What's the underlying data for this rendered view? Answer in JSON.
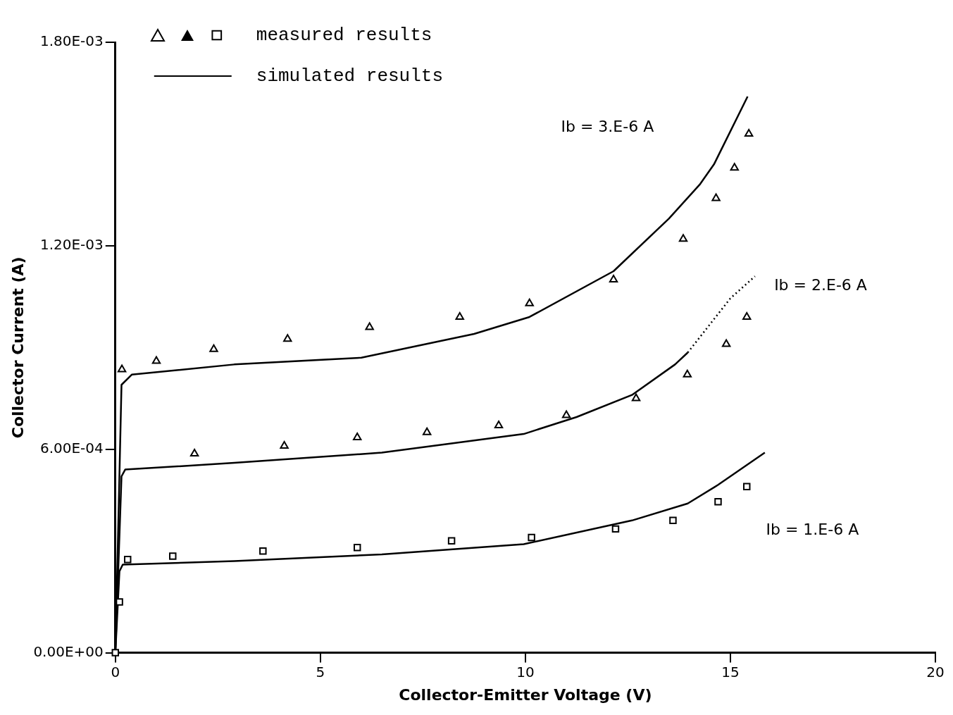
{
  "chart_data": {
    "type": "scatter",
    "xlabel": "Collector-Emitter Voltage (V)",
    "ylabel": "Collector Current (A)",
    "xlim": [
      0,
      20
    ],
    "xticks": [
      0,
      5,
      10,
      15,
      20
    ],
    "ylim": [
      0,
      0.0018
    ],
    "yticks": [
      {
        "value": 0,
        "label": "0.00E+00"
      },
      {
        "value": 0.0006,
        "label": "6.00E-04"
      },
      {
        "value": 0.0012,
        "label": "1.20E-03"
      },
      {
        "value": 0.0018,
        "label": "1.80E-03"
      }
    ],
    "grid": false,
    "legend": "top left",
    "series": [
      {
        "type": "scatter",
        "marker": "triangle",
        "color": "#000000",
        "x": [
          0.16,
          1.0,
          2.4,
          4.2,
          6.2,
          8.4,
          10.1,
          12.15,
          13.85,
          14.65,
          15.1,
          15.45
        ],
        "values": [
          0.000835,
          0.00086,
          0.000895,
          0.000925,
          0.00096,
          0.00099,
          0.00103,
          0.0011,
          0.00122,
          0.00134,
          0.00143,
          0.00153
        ]
      },
      {
        "type": "scatter",
        "marker": "triangle",
        "color": "#000000",
        "x": [
          1.93,
          4.12,
          5.9,
          7.6,
          9.35,
          11.0,
          12.7,
          13.95,
          14.9,
          15.4
        ],
        "values": [
          0.000587,
          0.00061,
          0.000635,
          0.00065,
          0.00067,
          0.0007,
          0.00075,
          0.00082,
          0.00091,
          0.00099
        ]
      },
      {
        "name": "measured results",
        "type": "scatter",
        "marker": "square",
        "color": "#000000",
        "x": [
          0,
          0.1,
          0.3,
          1.4,
          3.6,
          5.9,
          8.2,
          10.15,
          12.2,
          13.6,
          14.7,
          15.4
        ],
        "values": [
          0,
          0.00015,
          0.000275,
          0.000285,
          0.0003,
          0.00031,
          0.00033,
          0.00034,
          0.000365,
          0.00039,
          0.000445,
          0.00049
        ]
      },
      {
        "name": "simulated results",
        "type": "line",
        "marker": "none",
        "line_style": "solid",
        "color": "#000000",
        "x": [
          0,
          0.15,
          0.4,
          2.9,
          6.0,
          8.75,
          10.1,
          12.15,
          13.5,
          14.25,
          14.6,
          15.42
        ],
        "values": [
          0,
          0.00079,
          0.00082,
          0.00085,
          0.00087,
          0.00094,
          0.00099,
          0.001125,
          0.00128,
          0.00138,
          0.00144,
          0.00164
        ]
      },
      {
        "type": "line",
        "marker": "none",
        "line_style": "solid",
        "color": "#000000",
        "x": [
          0,
          0.15,
          0.24,
          2.9,
          6.5,
          9.96,
          11.25,
          12.6,
          13.65,
          13.96
        ],
        "values": [
          0,
          0.00052,
          0.00054,
          0.00056,
          0.00059,
          0.000645,
          0.000695,
          0.00076,
          0.00085,
          0.000885
        ]
      },
      {
        "type": "line",
        "marker": "none",
        "line_style": "dotted",
        "color": "#000000",
        "x": [
          13.96,
          15.0,
          15.6
        ],
        "values": [
          0.000885,
          0.001045,
          0.00111
        ]
      },
      {
        "type": "line",
        "marker": "none",
        "line_style": "solid",
        "color": "#000000",
        "x": [
          0,
          0.1,
          0.18,
          2.9,
          6.5,
          9.96,
          12.6,
          13.96,
          14.7,
          15.84
        ],
        "values": [
          0,
          0.00024,
          0.00026,
          0.00027,
          0.00029,
          0.00032,
          0.00039,
          0.00044,
          0.000495,
          0.00059
        ]
      }
    ],
    "annotations": [
      "Ib = 3.E-6 A",
      "Ib = 2.E-6 A",
      "Ib = 1.E-6 A"
    ]
  }
}
